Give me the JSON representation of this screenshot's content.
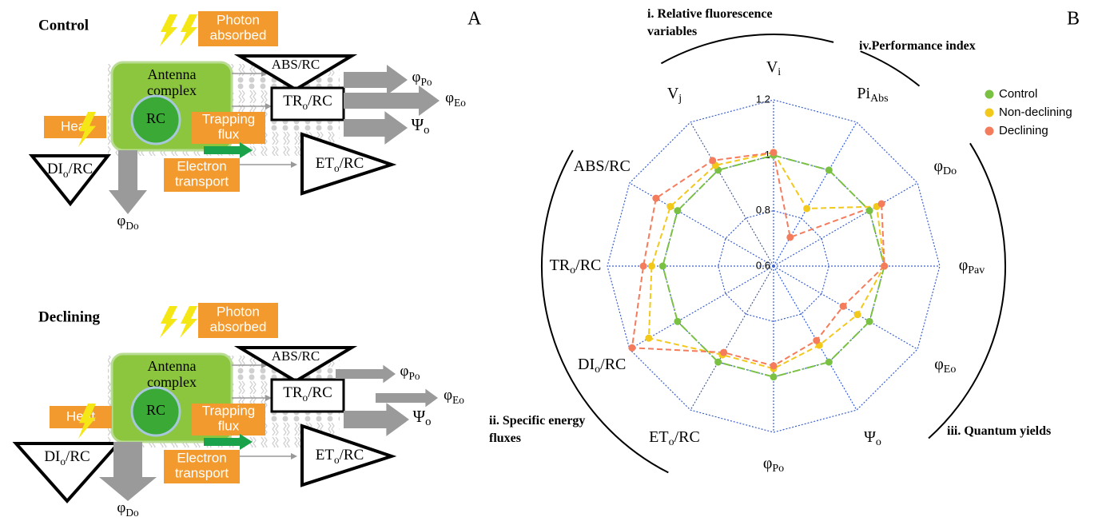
{
  "panel_letter_a": "A",
  "panel_letter_b": "B",
  "panel_a": [
    {
      "title": "Control",
      "photon": [
        "Photon",
        "absorbed"
      ],
      "antenna": [
        "Antenna",
        "complex"
      ],
      "rc": "RC",
      "heat": "Heat",
      "trapping": [
        "Trapping",
        "flux"
      ],
      "electron": [
        "Electron",
        "transport"
      ],
      "abs": {
        "base": "ABS/RC"
      },
      "tr": {
        "base": "TR",
        "sub": "o",
        "tail": "/RC"
      },
      "et": {
        "base": "ET",
        "sub": "o",
        "tail": "/RC"
      },
      "di": {
        "base": "DI",
        "sub": "o",
        "tail": "/RC"
      },
      "phi_po": {
        "base": "φ",
        "sub": "Po"
      },
      "phi_eo": {
        "base": "φ",
        "sub": "Eo"
      },
      "psi_o": {
        "base": "Ψ",
        "sub": "o"
      },
      "phi_do": {
        "base": "φ",
        "sub": "Do"
      }
    },
    {
      "title": "Declining",
      "photon": [
        "Photon",
        "absorbed"
      ],
      "antenna": [
        "Antenna",
        "complex"
      ],
      "rc": "RC",
      "heat": "Heat",
      "trapping": [
        "Trapping",
        "flux"
      ],
      "electron": [
        "Electron",
        "transport"
      ],
      "abs": {
        "base": "ABS/RC"
      },
      "tr": {
        "base": "TR",
        "sub": "o",
        "tail": "/RC"
      },
      "et": {
        "base": "ET",
        "sub": "o",
        "tail": "/RC"
      },
      "di": {
        "base": "DI",
        "sub": "o",
        "tail": "/RC"
      },
      "phi_po": {
        "base": "φ",
        "sub": "Po"
      },
      "phi_eo": {
        "base": "φ",
        "sub": "Eo"
      },
      "psi_o": {
        "base": "Ψ",
        "sub": "o"
      },
      "phi_do": {
        "base": "φ",
        "sub": "Do"
      }
    }
  ],
  "chart_data": {
    "type": "radar",
    "categories": [
      {
        "base": "V",
        "sub": "i"
      },
      {
        "base": "Pi",
        "sub": "Abs"
      },
      {
        "base": "φ",
        "sub": "Do"
      },
      {
        "base": "φ",
        "sub": "Pav"
      },
      {
        "base": "φ",
        "sub": "Eo"
      },
      {
        "base": "Ψ",
        "sub": "o"
      },
      {
        "base": "φ",
        "sub": "Po"
      },
      {
        "base": "ET",
        "sub": "o",
        "tail": "/RC"
      },
      {
        "base": "DI",
        "sub": "o",
        "tail": "/RC"
      },
      {
        "base": "TR",
        "sub": "o",
        "tail": "/RC"
      },
      {
        "base": "ABS/RC"
      },
      {
        "base": "V",
        "sub": "j"
      }
    ],
    "series": [
      {
        "name": "Control",
        "color": "#7ac143",
        "values": [
          1,
          1,
          1,
          1,
          1,
          1,
          1,
          1,
          1,
          1,
          1,
          1
        ]
      },
      {
        "name": "Non-declining",
        "color": "#f2c81a",
        "values": [
          1.01,
          0.84,
          1.03,
          1,
          0.95,
          0.93,
          0.97,
          0.97,
          1.12,
          1.04,
          1.03,
          1.02
        ]
      },
      {
        "name": "Declining",
        "color": "#f47c5c",
        "values": [
          1.01,
          0.72,
          1.05,
          1,
          0.89,
          0.91,
          0.96,
          0.96,
          1.19,
          1.07,
          1.09,
          1.04
        ]
      }
    ],
    "rlim": [
      0.6,
      1.2
    ],
    "rticks": [
      0.6,
      0.8,
      1,
      1.2
    ],
    "grid": true,
    "grid_color": "#3a5fcd",
    "legend": "top-right",
    "groups": [
      {
        "label": [
          "i. Relative fluorescence",
          "variables"
        ]
      },
      {
        "label": [
          "iv.Performance index"
        ]
      },
      {
        "label": [
          "iii. Quantum yields"
        ]
      },
      {
        "label": [
          "ii. Specific energy",
          "fluxes"
        ]
      }
    ]
  }
}
